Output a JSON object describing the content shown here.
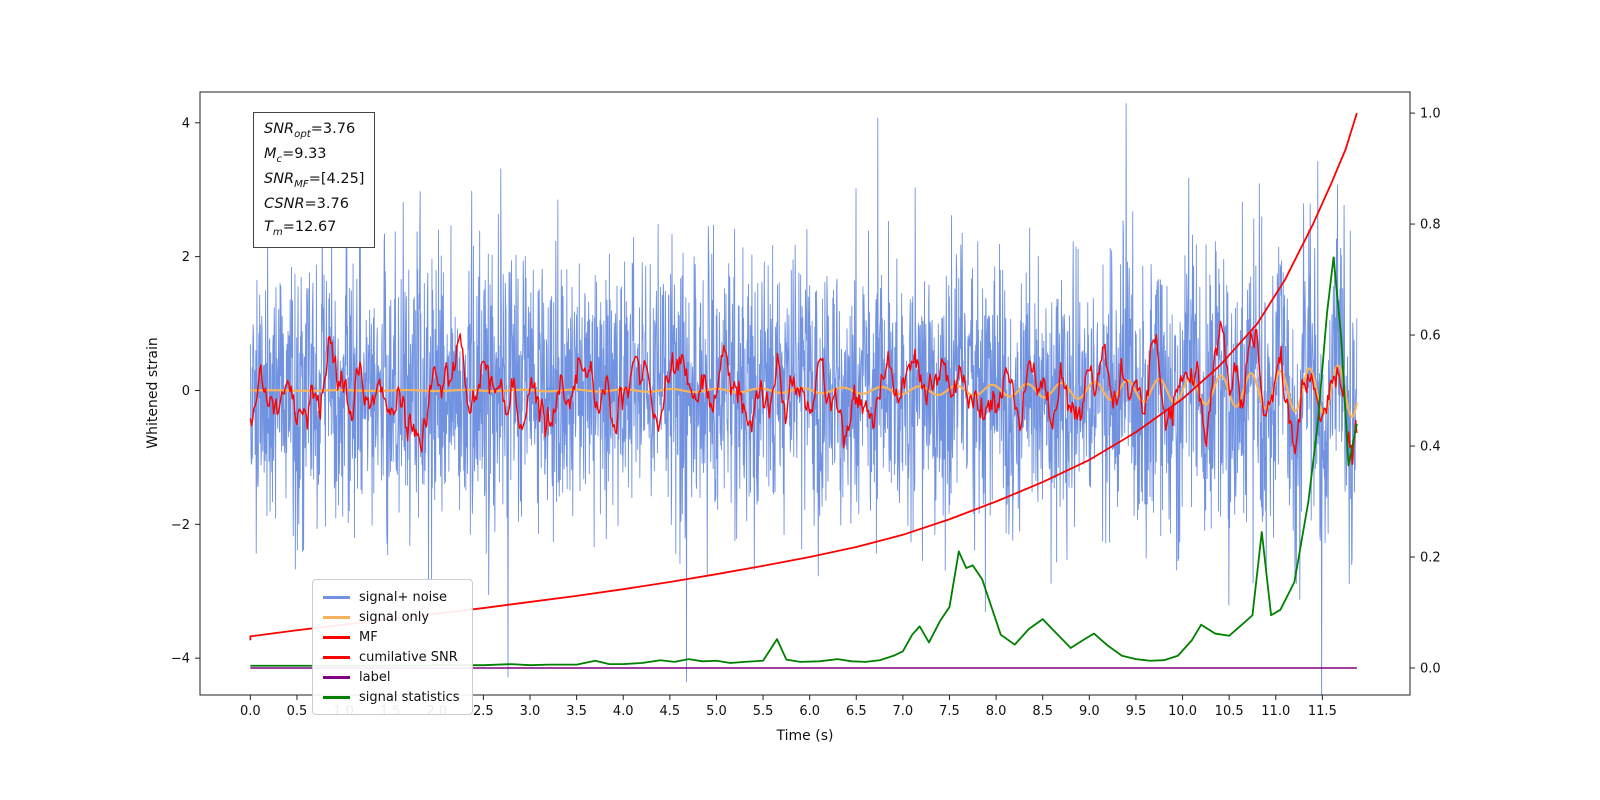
{
  "chart_data": {
    "type": "line",
    "title": "",
    "xlabel": "Time (s)",
    "ylabel_left": "Whitened strain",
    "xlim": [
      -0.54,
      12.44
    ],
    "ylim_left": [
      -4.55,
      4.46
    ],
    "ylim_right": [
      -0.0487,
      1.038
    ],
    "grid": false,
    "legend_position": "lower left",
    "x_tick_values": [
      0,
      0.5,
      1,
      1.5,
      2,
      2.5,
      3,
      3.5,
      4,
      4.5,
      5,
      5.5,
      6,
      6.5,
      7,
      7.5,
      8,
      8.5,
      9,
      9.5,
      10,
      10.5,
      11,
      11.5
    ],
    "x_tick_labels": [
      "0.0",
      "0.5",
      "1.0",
      "1.5",
      "2.0",
      "2.5",
      "3.0",
      "3.5",
      "4.0",
      "4.5",
      "5.0",
      "5.5",
      "6.0",
      "6.5",
      "7.0",
      "7.5",
      "8.0",
      "8.5",
      "9.0",
      "9.5",
      "10.0",
      "10.5",
      "11.0",
      "11.5"
    ],
    "y_left_tick_values": [
      4,
      2,
      0,
      -2,
      -4
    ],
    "y_left_tick_labels": [
      "4",
      "2",
      "0",
      "−2",
      "−4"
    ],
    "y_right_tick_values": [
      0,
      0.2,
      0.4,
      0.6,
      0.8,
      1.0
    ],
    "y_right_tick_labels": [
      "0.0",
      "0.2",
      "0.4",
      "0.6",
      "0.8",
      "1.0"
    ],
    "series": [
      {
        "id": "signal-noise",
        "label": "signal+ noise",
        "color": "#7092e0",
        "axis": "left",
        "kind": "noise",
        "seed": 1337,
        "n": 3200,
        "std": 1.02,
        "t_start": 0,
        "t_end": 11.87,
        "chirp_gain": 2.5,
        "line_width": 0.9,
        "spikes": [
          [
            4.68,
            -4.35
          ],
          [
            6.73,
            4.07
          ],
          [
            11.45,
            3.42
          ]
        ]
      },
      {
        "id": "signal-only",
        "label": "signal only",
        "color": "#f7b35c",
        "axis": "left",
        "kind": "chirp",
        "n": 1200,
        "t_start": 0,
        "t_end": 11.87,
        "line_width": 2.2,
        "chirp": {
          "amp0": 0.0035,
          "growth": 0.4,
          "amp_max": 0.5,
          "f0": 1.2,
          "f1": 0.09
        }
      },
      {
        "id": "mf",
        "label": "MF",
        "color": "#ff0000",
        "axis": "left",
        "kind": "smooth-noise",
        "seed": 4242,
        "n": 950,
        "std": 0.45,
        "smooth_window": 3,
        "t_start": 0,
        "t_end": 11.87,
        "chirp_gain": 1.2,
        "line_width": 1.4
      },
      {
        "id": "cumulative-snr",
        "label": "cumilative SNR",
        "color": "#ff0000",
        "axis": "right",
        "kind": "points",
        "line_width": 1.8,
        "points": [
          [
            0,
            0.05
          ],
          [
            0,
            0.057
          ],
          [
            0.5,
            0.068
          ],
          [
            1,
            0.078
          ],
          [
            1.5,
            0.088
          ],
          [
            2,
            0.098
          ],
          [
            2.5,
            0.108
          ],
          [
            3,
            0.119
          ],
          [
            3.5,
            0.13
          ],
          [
            4,
            0.142
          ],
          [
            4.5,
            0.155
          ],
          [
            5,
            0.169
          ],
          [
            5.5,
            0.184
          ],
          [
            6,
            0.2
          ],
          [
            6.5,
            0.218
          ],
          [
            7,
            0.24
          ],
          [
            7.5,
            0.268
          ],
          [
            8,
            0.3
          ],
          [
            8.5,
            0.335
          ],
          [
            9,
            0.375
          ],
          [
            9.5,
            0.425
          ],
          [
            10,
            0.485
          ],
          [
            10.4,
            0.545
          ],
          [
            10.8,
            0.62
          ],
          [
            11.1,
            0.7
          ],
          [
            11.4,
            0.8
          ],
          [
            11.6,
            0.875
          ],
          [
            11.75,
            0.935
          ],
          [
            11.87,
            1.0
          ]
        ]
      },
      {
        "id": "label",
        "label": "label",
        "color": "#800080",
        "axis": "right",
        "kind": "points",
        "line_width": 1.5,
        "points": [
          [
            0,
            0.0
          ],
          [
            11.87,
            0.0
          ]
        ]
      },
      {
        "id": "signal-statistics",
        "label": "signal statistics",
        "color": "#008000",
        "axis": "right",
        "kind": "points",
        "line_width": 1.8,
        "points": [
          [
            0,
            0.004
          ],
          [
            0.5,
            0.004
          ],
          [
            1,
            0.004
          ],
          [
            1.5,
            0.004
          ],
          [
            2,
            0.005
          ],
          [
            2.5,
            0.005
          ],
          [
            2.8,
            0.007
          ],
          [
            3,
            0.005
          ],
          [
            3.2,
            0.006
          ],
          [
            3.5,
            0.006
          ],
          [
            3.7,
            0.013
          ],
          [
            3.85,
            0.007
          ],
          [
            4,
            0.007
          ],
          [
            4.2,
            0.009
          ],
          [
            4.4,
            0.014
          ],
          [
            4.55,
            0.011
          ],
          [
            4.7,
            0.016
          ],
          [
            4.85,
            0.012
          ],
          [
            5,
            0.013
          ],
          [
            5.15,
            0.009
          ],
          [
            5.3,
            0.011
          ],
          [
            5.5,
            0.013
          ],
          [
            5.65,
            0.052
          ],
          [
            5.75,
            0.015
          ],
          [
            5.9,
            0.011
          ],
          [
            6.1,
            0.012
          ],
          [
            6.3,
            0.016
          ],
          [
            6.45,
            0.012
          ],
          [
            6.6,
            0.011
          ],
          [
            6.75,
            0.014
          ],
          [
            6.9,
            0.022
          ],
          [
            7,
            0.03
          ],
          [
            7.1,
            0.06
          ],
          [
            7.18,
            0.075
          ],
          [
            7.28,
            0.046
          ],
          [
            7.4,
            0.085
          ],
          [
            7.5,
            0.11
          ],
          [
            7.6,
            0.21
          ],
          [
            7.68,
            0.18
          ],
          [
            7.75,
            0.185
          ],
          [
            7.85,
            0.16
          ],
          [
            7.95,
            0.11
          ],
          [
            8.05,
            0.06
          ],
          [
            8.2,
            0.042
          ],
          [
            8.35,
            0.07
          ],
          [
            8.5,
            0.088
          ],
          [
            8.65,
            0.062
          ],
          [
            8.8,
            0.036
          ],
          [
            8.95,
            0.052
          ],
          [
            9.05,
            0.062
          ],
          [
            9.2,
            0.04
          ],
          [
            9.35,
            0.022
          ],
          [
            9.5,
            0.016
          ],
          [
            9.65,
            0.013
          ],
          [
            9.8,
            0.014
          ],
          [
            9.95,
            0.022
          ],
          [
            10.1,
            0.05
          ],
          [
            10.2,
            0.078
          ],
          [
            10.35,
            0.062
          ],
          [
            10.5,
            0.058
          ],
          [
            10.65,
            0.08
          ],
          [
            10.75,
            0.095
          ],
          [
            10.85,
            0.245
          ],
          [
            10.95,
            0.095
          ],
          [
            11.05,
            0.105
          ],
          [
            11.2,
            0.155
          ],
          [
            11.35,
            0.3
          ],
          [
            11.45,
            0.44
          ],
          [
            11.55,
            0.64
          ],
          [
            11.62,
            0.74
          ],
          [
            11.7,
            0.6
          ],
          [
            11.78,
            0.365
          ],
          [
            11.87,
            0.44
          ]
        ]
      }
    ]
  },
  "annotation_box": {
    "lines": [
      "SNR_{opt}=3.76",
      "M_{c}=9.33",
      "SNR_{MF}=[4.25]",
      "CSNR=3.76",
      "T_{m}=12.67"
    ]
  }
}
